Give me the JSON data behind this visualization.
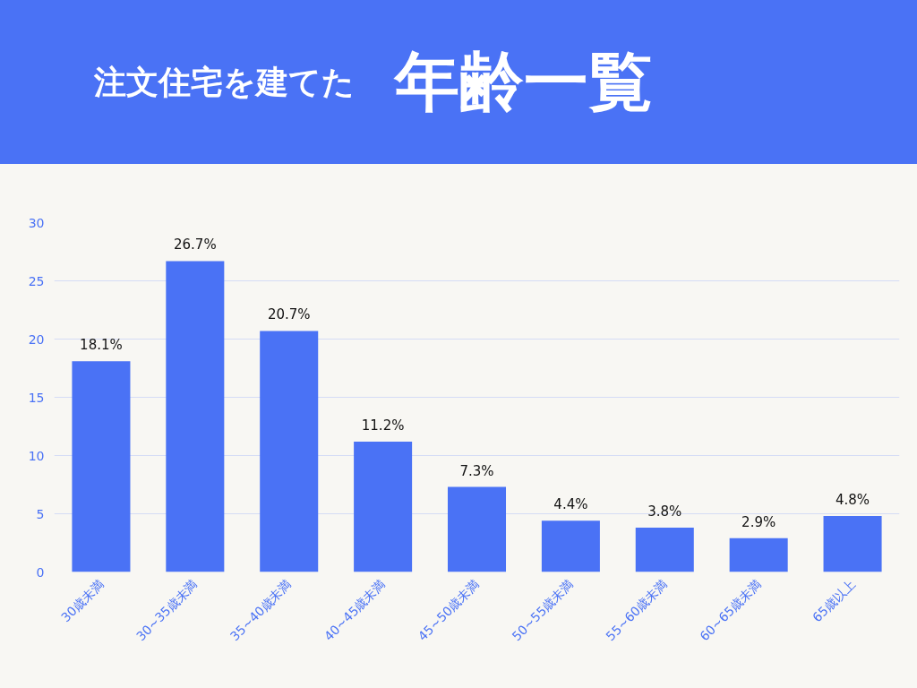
{
  "chart_data": {
    "type": "bar",
    "title": "注文住宅を建てた",
    "subtitle": "年齢一覧",
    "categories": [
      "30歳未満",
      "30~35歳未満",
      "35~40歳未満",
      "40~45歳未満",
      "45~50歳未満",
      "50~55歳未満",
      "55~60歳未満",
      "60~65歳未満",
      "65歳以上"
    ],
    "values": [
      18.1,
      26.7,
      20.7,
      11.2,
      7.3,
      4.4,
      3.8,
      2.9,
      4.8
    ],
    "value_labels": [
      "18.1%",
      "26.7%",
      "20.7%",
      "11.2%",
      "7.3%",
      "4.4%",
      "3.8%",
      "2.9%",
      "4.8%"
    ],
    "color": "#4a72f5",
    "ylim": [
      0,
      30
    ],
    "yticks": [
      0,
      5,
      10,
      15,
      20,
      25,
      30
    ],
    "grid": "y"
  }
}
